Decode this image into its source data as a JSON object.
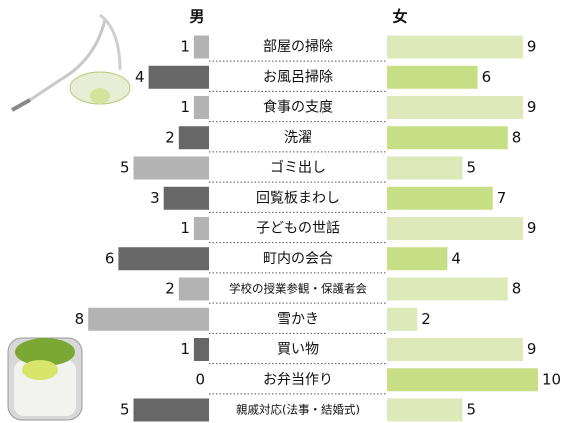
{
  "chart_data": {
    "type": "bar",
    "orientation": "butterfly",
    "categories": [
      "部屋の掃除",
      "お風呂掃除",
      "食事の支度",
      "洗濯",
      "ゴミ出し",
      "回覧板まわし",
      "子どもの世話",
      "町内の会合",
      "学校の授業参観・保護者会",
      "雪かき",
      "買い物",
      "お弁当作り",
      "親戚対応(法事・結婚式)"
    ],
    "series": [
      {
        "name": "男",
        "color": "#111111",
        "values": [
          1,
          4,
          1,
          2,
          5,
          3,
          1,
          6,
          2,
          8,
          1,
          0,
          5
        ],
        "colors": [
          "#b3b3b3",
          "#676767",
          "#b3b3b3",
          "#676767",
          "#b3b3b3",
          "#676767",
          "#b3b3b3",
          "#676767",
          "#b3b3b3",
          "#b3b3b3",
          "#676767",
          "#676767",
          "#676767"
        ]
      },
      {
        "name": "女",
        "color": "#b5c42a",
        "values": [
          9,
          6,
          9,
          8,
          5,
          7,
          9,
          4,
          8,
          2,
          9,
          10,
          5
        ],
        "colors": [
          "#dde9b8",
          "#c8de84",
          "#dde9b8",
          "#c8de84",
          "#dde9b8",
          "#c8de84",
          "#dde9b8",
          "#c8de84",
          "#dde9b8",
          "#dde9b8",
          "#dde9b8",
          "#c8de84",
          "#dde9b8"
        ]
      }
    ]
  }
}
